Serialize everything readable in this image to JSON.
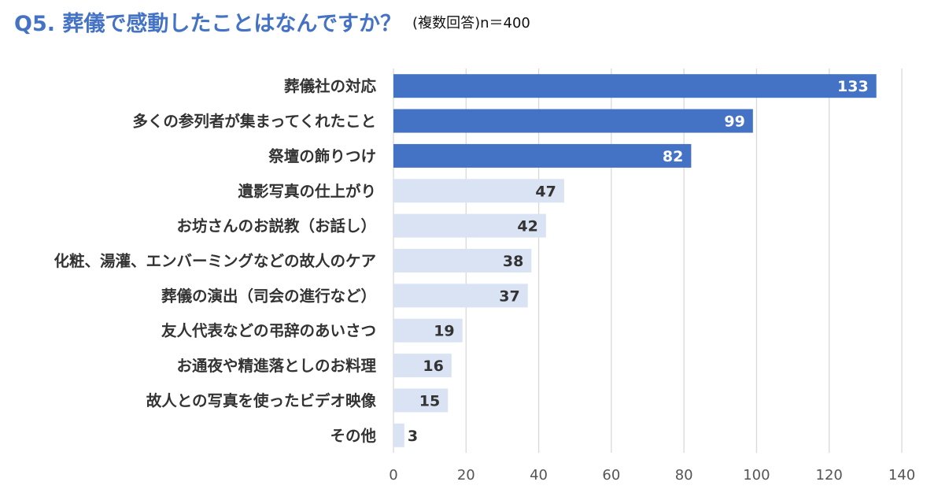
{
  "header": {
    "title": "Q5. 葬儀で感動したことはなんですか？",
    "subtitle": "(複数回答)n＝400"
  },
  "colors": {
    "title": "#4472c4",
    "bar_top": "#4472c4",
    "bar_rest": "#dae3f3",
    "grid": "#d9d9d9",
    "label_on_dark": "#ffffff",
    "label_on_light": "#333333"
  },
  "chart_data": {
    "type": "bar",
    "orientation": "horizontal",
    "title": "Q5. 葬儀で感動したことはなんですか？",
    "subtitle": "(複数回答)n＝400",
    "categories": [
      "葬儀社の対応",
      "多くの参列者が集まってくれたこと",
      "祭壇の飾りつけ",
      "遺影写真の仕上がり",
      "お坊さんのお説教（お話し）",
      "化粧、湯灌、エンバーミングなどの故人のケア",
      "葬儀の演出（司会の進行など）",
      "友人代表などの弔辞のあいさつ",
      "お通夜や精進落としのお料理",
      "故人との写真を使ったビデオ映像",
      "その他"
    ],
    "values": [
      133,
      99,
      82,
      47,
      42,
      38,
      37,
      19,
      16,
      15,
      3
    ],
    "highlight_top_n": 3,
    "xlim": [
      0,
      140
    ],
    "xticks": [
      0,
      20,
      40,
      60,
      80,
      100,
      120,
      140
    ],
    "grid": true,
    "xlabel": "",
    "ylabel": ""
  }
}
